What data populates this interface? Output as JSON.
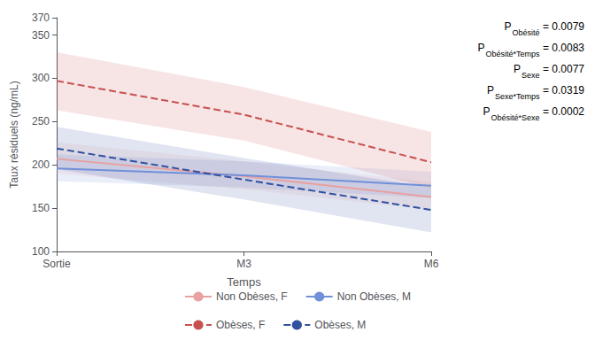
{
  "chart_data": {
    "type": "line",
    "xlabel": "Temps",
    "ylabel": "Taux résiduels (ng/mL)",
    "categories": [
      "Sortie",
      "M3",
      "M6"
    ],
    "series": [
      {
        "name": "Non Obèses, F",
        "color": "#e8a0a0",
        "line_style": "solid",
        "values": [
          207,
          187,
          163
        ],
        "lower": [
          190,
          172,
          148
        ],
        "upper": [
          226,
          204,
          180
        ]
      },
      {
        "name": "Non Obèses, M",
        "color": "#7090d8",
        "line_style": "solid",
        "values": [
          196,
          188,
          176
        ],
        "lower": [
          181,
          174,
          162
        ],
        "upper": [
          212,
          204,
          192
        ]
      },
      {
        "name": "Obèses, F",
        "color": "#c85050",
        "line_style": "dashed",
        "values": [
          297,
          258,
          203
        ],
        "lower": [
          263,
          228,
          173
        ],
        "upper": [
          330,
          290,
          238
        ]
      },
      {
        "name": "Obèses, M",
        "color": "#3050a0",
        "line_style": "dashed",
        "values": [
          219,
          183,
          148
        ],
        "lower": [
          195,
          160,
          122
        ],
        "upper": [
          244,
          208,
          174
        ]
      }
    ],
    "ylim": [
      100,
      370
    ],
    "yticks": [
      100,
      150,
      200,
      250,
      300,
      350
    ],
    "grid": false,
    "legend": "bottom",
    "annotations": [
      {
        "text": "P",
        "subscript": "Obésité",
        "relation": "=",
        "value": "0.0079"
      },
      {
        "text": "P",
        "subscript": "Obésité*Temps",
        "relation": "=",
        "value": "0.0083"
      },
      {
        "text": "P",
        "subscript": "Sexe",
        "relation": "=",
        "value": "0.0077"
      },
      {
        "text": "P",
        "subscript": "Sexe*Temps",
        "relation": "=",
        "value": "0.0319"
      },
      {
        "text": "P",
        "subscript": "Obésité*Sexe",
        "relation": "=",
        "value": "0.0002"
      }
    ]
  }
}
